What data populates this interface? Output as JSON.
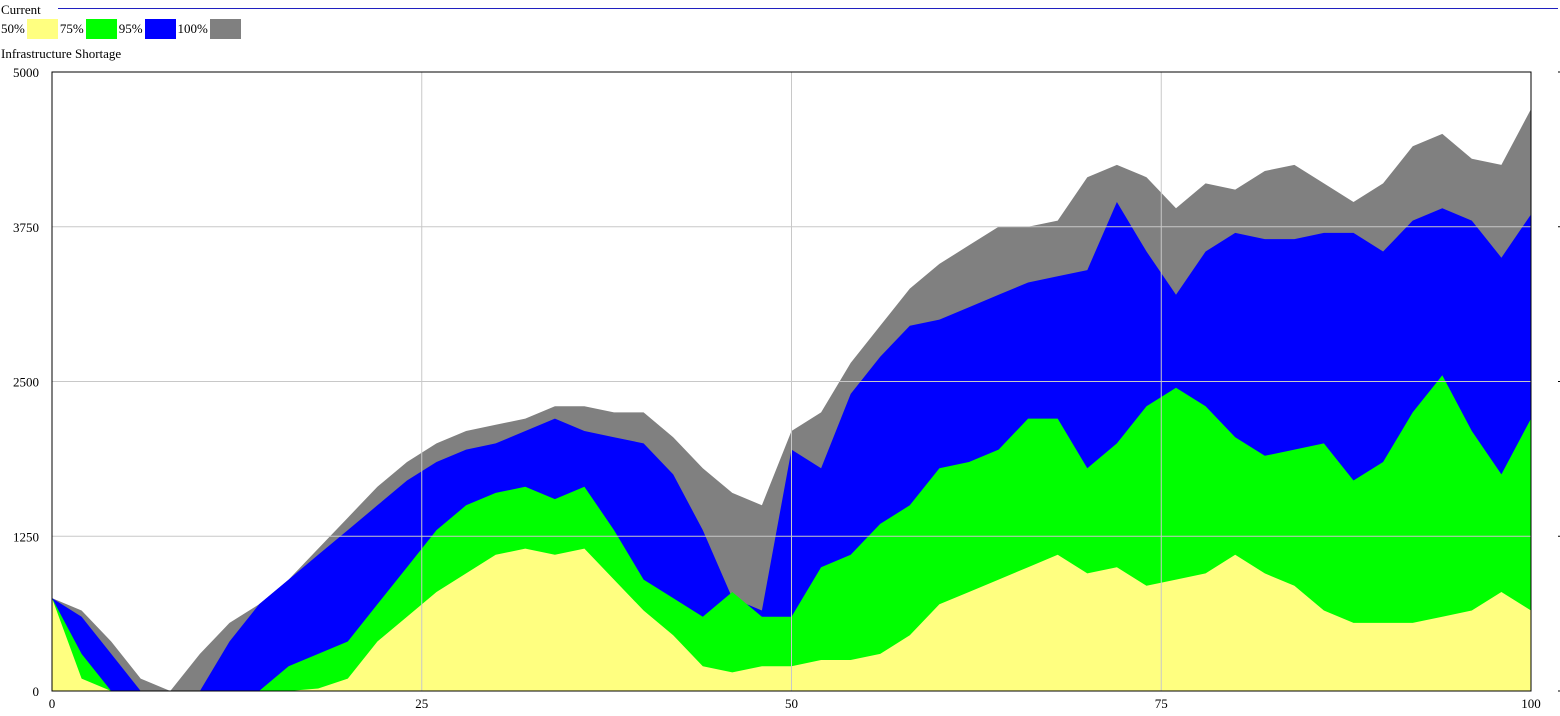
{
  "header": {
    "title": "Current"
  },
  "legend": {
    "items": [
      {
        "label": "50%",
        "color": "#ffff80"
      },
      {
        "label": "75%",
        "color": "#00ff00"
      },
      {
        "label": "95%",
        "color": "#0000ff"
      },
      {
        "label": "100%",
        "color": "#808080"
      }
    ]
  },
  "chart_data": {
    "type": "area",
    "title": "Infrastructure Shortage",
    "xlabel": "",
    "ylabel": "",
    "xlim": [
      0,
      100
    ],
    "ylim": [
      0,
      5000
    ],
    "x_ticks": [
      "0",
      "25",
      "50",
      "75",
      "100"
    ],
    "y_ticks": [
      "0",
      "1250",
      "2500",
      "3750",
      "5000"
    ],
    "grid": true,
    "x": [
      0,
      2,
      4,
      6,
      8,
      10,
      12,
      14,
      16,
      18,
      20,
      22,
      24,
      26,
      28,
      30,
      32,
      34,
      36,
      38,
      40,
      42,
      44,
      46,
      48,
      50,
      52,
      54,
      56,
      58,
      60,
      62,
      64,
      66,
      68,
      70,
      72,
      74,
      76,
      78,
      80,
      82,
      84,
      86,
      88,
      90,
      92,
      94,
      96,
      98,
      100
    ],
    "series": [
      {
        "band": "50%",
        "color": "#ffff80",
        "values": [
          750,
          100,
          0,
          0,
          0,
          0,
          0,
          0,
          0,
          20,
          100,
          400,
          600,
          800,
          950,
          1100,
          1150,
          1100,
          1150,
          900,
          650,
          450,
          200,
          150,
          200,
          200,
          250,
          250,
          300,
          450,
          700,
          800,
          900,
          1000,
          1100,
          950,
          1000,
          850,
          900,
          950,
          1100,
          950,
          850,
          650,
          550,
          550,
          550,
          600,
          650,
          800,
          650
        ]
      },
      {
        "band": "75%",
        "color": "#00ff00",
        "values": [
          750,
          300,
          0,
          0,
          0,
          0,
          0,
          0,
          200,
          300,
          400,
          700,
          1000,
          1300,
          1500,
          1600,
          1650,
          1550,
          1650,
          1300,
          900,
          750,
          600,
          800,
          600,
          600,
          1000,
          1100,
          1350,
          1500,
          1800,
          1850,
          1950,
          2200,
          2200,
          1800,
          2000,
          2300,
          2450,
          2300,
          2050,
          1900,
          1950,
          2000,
          1700,
          1850,
          2250,
          2550,
          2100,
          1750,
          2200
        ]
      },
      {
        "band": "95%",
        "color": "#0000ff",
        "values": [
          750,
          600,
          300,
          0,
          0,
          0,
          400,
          700,
          900,
          1100,
          1300,
          1500,
          1700,
          1850,
          1950,
          2000,
          2100,
          2200,
          2100,
          2050,
          2000,
          1750,
          1300,
          750,
          650,
          1950,
          1800,
          2400,
          2700,
          2950,
          3000,
          3100,
          3200,
          3300,
          3350,
          3400,
          3950,
          3550,
          3200,
          3550,
          3700,
          3650,
          3650,
          3700,
          3700,
          3550,
          3800,
          3900,
          3800,
          3500,
          3850
        ]
      },
      {
        "band": "100%",
        "color": "#808080",
        "values": [
          750,
          650,
          400,
          100,
          0,
          300,
          550,
          700,
          900,
          1150,
          1400,
          1650,
          1850,
          2000,
          2100,
          2150,
          2200,
          2300,
          2300,
          2250,
          2250,
          2050,
          1800,
          1600,
          1500,
          2100,
          2250,
          2650,
          2950,
          3250,
          3450,
          3600,
          3750,
          3750,
          3800,
          4150,
          4250,
          4150,
          3900,
          4100,
          4050,
          4200,
          4250,
          4100,
          3950,
          4100,
          4400,
          4500,
          4300,
          4250,
          4700
        ]
      }
    ]
  }
}
